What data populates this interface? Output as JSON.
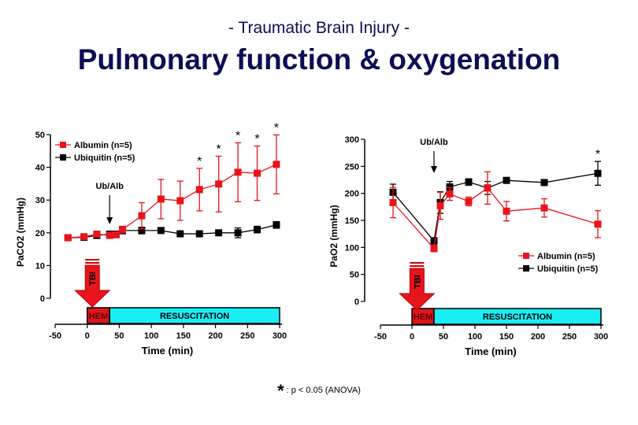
{
  "header": {
    "subtitle": "- Traumatic Brain Injury -",
    "title": "Pulmonary function & oxygenation"
  },
  "footnote": {
    "star": "*",
    "text": ": p < 0.05 (ANOVA)"
  },
  "colors": {
    "albumin": "#e8141c",
    "ubiquitin": "#000000",
    "hem": "#e0141c",
    "resuscitation": "#19eef5",
    "title": "#0d0d55"
  },
  "chart_data": [
    {
      "type": "line",
      "title": "",
      "xlabel": "Time (min)",
      "ylabel": "PaCO2 (mmHg)",
      "xlim": [
        -50,
        300
      ],
      "ylim": [
        0,
        50
      ],
      "xticks": [
        -50,
        0,
        50,
        100,
        150,
        200,
        250,
        300
      ],
      "yticks": [
        0,
        10,
        20,
        30,
        40,
        50
      ],
      "legend_position": "upper-left",
      "annotations": [
        "Ub/Alb arrow at ~35 min",
        "TBI arrow at 0 min",
        "HEM phase 0-35 min",
        "RESUSCITATION phase 35-300 min"
      ],
      "phases": [
        {
          "label": "HEM",
          "start": 0,
          "end": 35
        },
        {
          "label": "RESUSCITATION",
          "start": 35,
          "end": 300
        }
      ],
      "tbi_label": "TBI",
      "arrow_label": "Ub/Alb",
      "arrow_x": 35,
      "x": [
        -30,
        -5,
        15,
        35,
        45,
        55,
        85,
        115,
        145,
        175,
        205,
        235,
        265,
        295
      ],
      "series": [
        {
          "name": "Albumin (n=5)",
          "color": "#e8141c",
          "values": [
            18.5,
            18.8,
            19.6,
            19.2,
            19.4,
            21,
            25.2,
            30.3,
            29.8,
            33.2,
            34.9,
            38.5,
            38.2,
            40.9
          ],
          "errors": [
            0.6,
            0.6,
            0.8,
            0.5,
            0.5,
            1,
            4,
            6,
            6,
            6.5,
            8.5,
            9,
            8.3,
            9
          ],
          "significant": [
            false,
            false,
            false,
            false,
            false,
            false,
            false,
            false,
            false,
            true,
            true,
            true,
            true,
            true
          ]
        },
        {
          "name": "Ubiquitin (n=5)",
          "color": "#000000",
          "values": [
            18.5,
            18.6,
            19.2,
            19.6,
            19.6,
            20.7,
            20.7,
            20.7,
            19.7,
            19.7,
            20,
            20,
            21,
            22.4
          ],
          "errors": [
            0.5,
            0.6,
            0.6,
            0.5,
            0.5,
            1,
            1,
            0.8,
            0.5,
            0.5,
            0.5,
            1.5,
            1,
            1
          ]
        }
      ]
    },
    {
      "type": "line",
      "title": "",
      "xlabel": "Time (min)",
      "ylabel": "PaO2 (mmHg)",
      "xlim": [
        -50,
        300
      ],
      "ylim": [
        0,
        300
      ],
      "xticks": [
        -50,
        0,
        50,
        100,
        150,
        200,
        250,
        300
      ],
      "yticks": [
        0,
        50,
        100,
        150,
        200,
        250,
        300
      ],
      "legend_position": "lower-right",
      "phases": [
        {
          "label": "HEM",
          "start": 0,
          "end": 35
        },
        {
          "label": "RESUSCITATION",
          "start": 35,
          "end": 300
        }
      ],
      "tbi_label": "TBI",
      "arrow_label": "Ub/Alb",
      "arrow_x": 35,
      "x": [
        -30,
        35,
        45,
        60,
        90,
        120,
        150,
        210,
        295
      ],
      "series": [
        {
          "name": "Albumin (n=5)",
          "color": "#e8141c",
          "values": [
            183,
            98,
            177,
            199,
            185,
            210,
            167,
            173,
            143
          ],
          "errors": [
            28,
            6,
            25,
            12,
            8,
            30,
            18,
            17,
            25
          ],
          "significant": [
            false,
            false,
            false,
            false,
            false,
            false,
            false,
            false,
            false
          ]
        },
        {
          "name": "Ubiquitin (n=5)",
          "color": "#000000",
          "values": [
            202,
            112,
            183,
            212,
            221,
            210,
            224,
            220,
            237
          ],
          "errors": [
            15,
            6,
            20,
            10,
            6,
            12,
            3,
            3,
            22
          ],
          "significant": [
            false,
            false,
            false,
            false,
            false,
            false,
            false,
            false,
            true
          ]
        }
      ]
    }
  ]
}
